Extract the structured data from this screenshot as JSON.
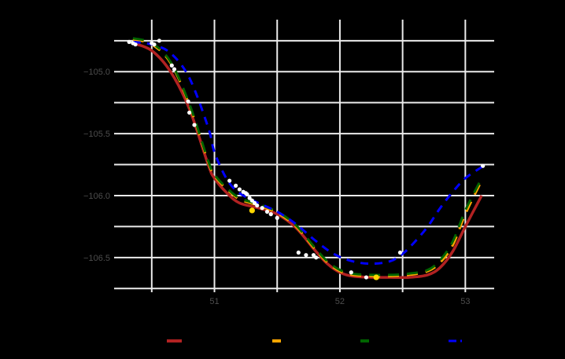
{
  "chart_data": {
    "type": "line",
    "title": "",
    "xlabel": "",
    "ylabel": "",
    "xlim": [
      50.2,
      53.23
    ],
    "ylim": [
      -106.78,
      -104.58
    ],
    "x_ticks": [
      51,
      52,
      53
    ],
    "x_tick_labels": [
      "51",
      "52",
      "53"
    ],
    "y_ticks": [
      -105.0,
      -105.5,
      -106.0,
      -106.5
    ],
    "y_tick_labels": [
      "−105.0",
      "−105.5",
      "−106.0",
      "−106.5"
    ],
    "x_minor_gridlines": [
      50.5,
      51.5,
      52.5
    ],
    "y_minor_gridlines": [
      -104.75,
      -105.25,
      -105.75,
      -106.25,
      -106.75
    ],
    "grid": true,
    "background": "#000000",
    "grid_color": "#ebebeb",
    "legend_position": "bottom",
    "series": [
      {
        "name": "",
        "color": "#b22222",
        "style": "solid",
        "width": 3.5,
        "x": [
          50.35,
          50.5,
          50.65,
          50.8,
          50.95,
          51.0,
          51.1,
          51.2,
          51.35,
          51.5,
          51.65,
          51.8,
          51.9,
          52.0,
          52.1,
          52.25,
          52.4,
          52.55,
          52.7,
          52.8,
          52.9,
          53.0,
          53.13
        ],
        "y": [
          -104.77,
          -104.83,
          -105.0,
          -105.3,
          -105.75,
          -105.86,
          -105.98,
          -106.06,
          -106.1,
          -106.15,
          -106.26,
          -106.44,
          -106.55,
          -106.62,
          -106.65,
          -106.66,
          -106.66,
          -106.66,
          -106.64,
          -106.58,
          -106.45,
          -106.25,
          -106.0
        ]
      },
      {
        "name": "",
        "color": "#ffa500",
        "style": "dashed",
        "width": 3,
        "x": [
          50.35,
          50.5,
          50.65,
          50.8,
          50.95,
          51.0,
          51.1,
          51.2,
          51.35,
          51.5,
          51.65,
          51.8,
          51.9,
          52.0,
          52.1,
          52.25,
          52.4,
          52.55,
          52.7,
          52.8,
          52.9,
          53.0,
          53.13
        ],
        "y": [
          -104.74,
          -104.78,
          -104.93,
          -105.27,
          -105.73,
          -105.84,
          -105.95,
          -106.03,
          -106.08,
          -106.14,
          -106.25,
          -106.43,
          -106.54,
          -106.61,
          -106.64,
          -106.65,
          -106.65,
          -106.64,
          -106.61,
          -106.54,
          -106.4,
          -106.15,
          -105.88
        ]
      },
      {
        "name": "",
        "color": "#006400",
        "style": "dashed",
        "width": 3,
        "x": [
          50.35,
          50.5,
          50.65,
          50.8,
          50.95,
          51.0,
          51.1,
          51.2,
          51.35,
          51.5,
          51.65,
          51.8,
          51.9,
          52.0,
          52.1,
          52.25,
          52.4,
          52.55,
          52.7,
          52.8,
          52.9,
          53.0,
          53.13
        ],
        "y": [
          -104.73,
          -104.77,
          -104.92,
          -105.26,
          -105.72,
          -105.83,
          -105.94,
          -106.02,
          -106.07,
          -106.13,
          -106.24,
          -106.42,
          -106.53,
          -106.6,
          -106.63,
          -106.64,
          -106.64,
          -106.63,
          -106.6,
          -106.52,
          -106.37,
          -106.12,
          -105.86
        ]
      },
      {
        "name": "",
        "color": "#0000ff",
        "style": "dashed",
        "width": 3,
        "x": [
          50.35,
          50.5,
          50.65,
          50.8,
          50.95,
          51.0,
          51.1,
          51.2,
          51.35,
          51.5,
          51.65,
          51.8,
          51.95,
          52.1,
          52.25,
          52.4,
          52.5,
          52.6,
          52.7,
          52.8,
          52.9,
          53.0,
          53.13
        ],
        "y": [
          -104.76,
          -104.78,
          -104.85,
          -105.05,
          -105.45,
          -105.65,
          -105.87,
          -105.98,
          -106.06,
          -106.13,
          -106.23,
          -106.36,
          -106.47,
          -106.53,
          -106.55,
          -106.53,
          -106.47,
          -106.37,
          -106.25,
          -106.1,
          -105.97,
          -105.86,
          -105.77
        ]
      }
    ],
    "points": {
      "color": "#ffffff",
      "x": [
        50.32,
        50.35,
        50.37,
        50.5,
        50.52,
        50.56,
        50.66,
        50.68,
        50.79,
        50.8,
        50.84,
        51.12,
        51.17,
        51.2,
        51.23,
        51.25,
        51.26,
        51.28,
        51.3,
        51.32,
        51.34,
        51.38,
        51.42,
        51.45,
        51.5,
        51.67,
        51.73,
        51.79,
        51.81,
        52.09,
        52.21,
        52.48,
        53.14
      ],
      "y": [
        -104.76,
        -104.77,
        -104.78,
        -104.77,
        -104.78,
        -104.75,
        -104.95,
        -104.98,
        -105.24,
        -105.33,
        -105.43,
        -105.88,
        -105.92,
        -105.95,
        -105.97,
        -105.98,
        -105.99,
        -106.02,
        -106.04,
        -106.06,
        -106.08,
        -106.1,
        -106.13,
        -106.15,
        -106.18,
        -106.46,
        -106.48,
        -106.48,
        -106.5,
        -106.62,
        -106.66,
        -106.46,
        -105.76
      ]
    },
    "highlight_points": {
      "color": "#ffd700",
      "x": [
        51.3,
        52.29
      ],
      "y": [
        -106.12,
        -106.66
      ]
    },
    "annotation": {
      "text": "",
      "x": 51.25,
      "y": -106.26
    },
    "legend": [
      {
        "label": "",
        "color": "#b22222",
        "style": "solid"
      },
      {
        "label": "",
        "color": "#ffa500",
        "style": "dashed"
      },
      {
        "label": "",
        "color": "#006400",
        "style": "dashed"
      },
      {
        "label": "",
        "color": "#0000ff",
        "style": "dashed"
      }
    ]
  }
}
